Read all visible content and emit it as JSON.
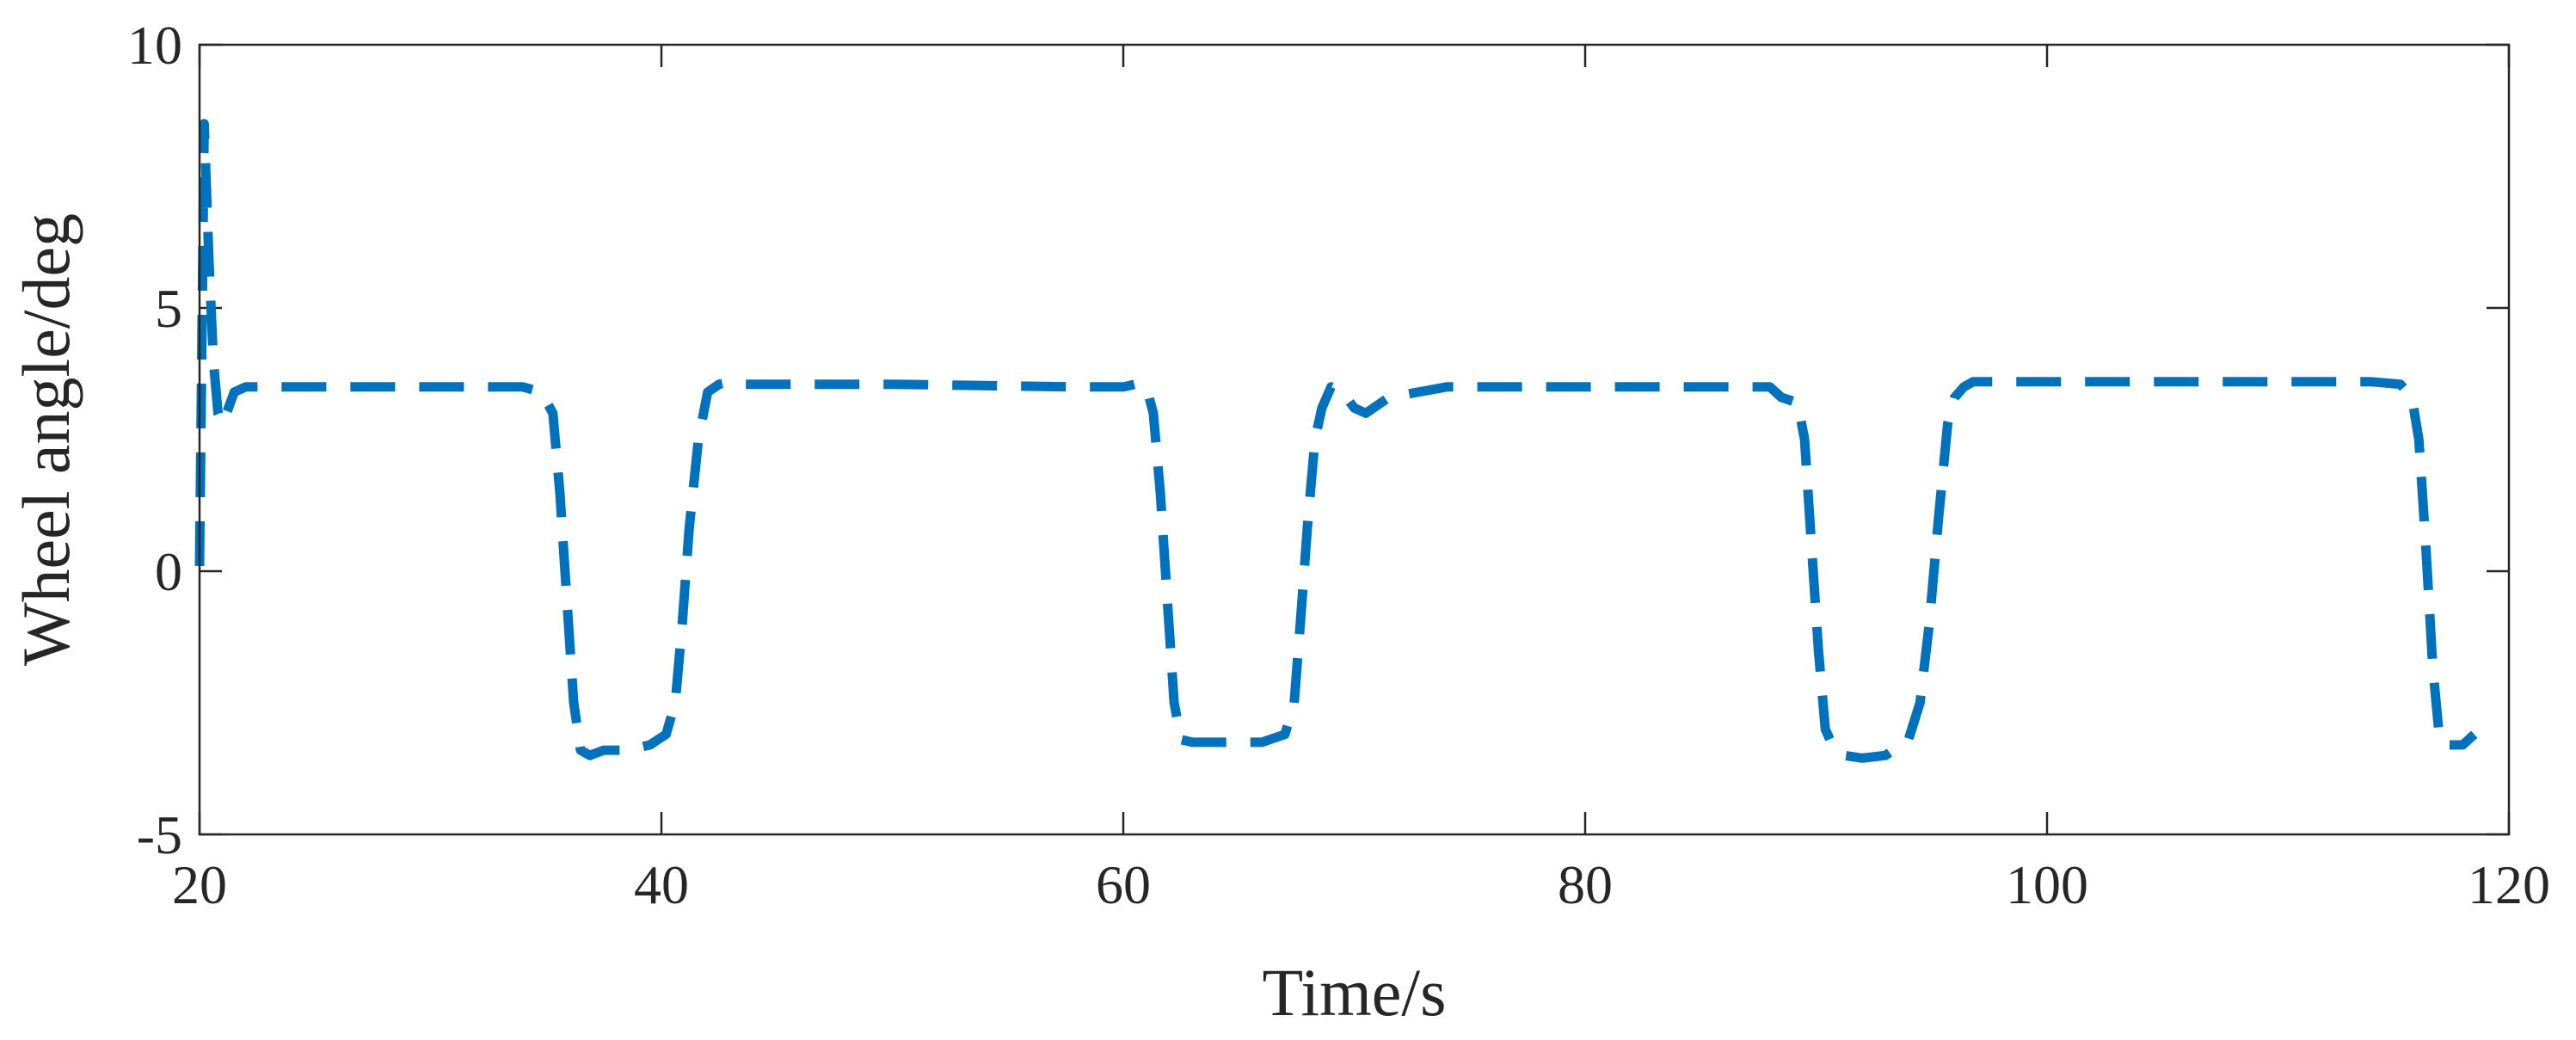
{
  "chart_data": {
    "type": "line",
    "title": "",
    "xlabel": "Time/s",
    "ylabel": "Wheel angle/deg",
    "xlim": [
      20,
      120
    ],
    "ylim": [
      -5,
      10
    ],
    "xticks": [
      20,
      40,
      60,
      80,
      100,
      120
    ],
    "yticks": [
      -5,
      0,
      5,
      10
    ],
    "xtick_labels": [
      "20",
      "40",
      "60",
      "80",
      "100",
      "120"
    ],
    "ytick_labels": [
      "-5",
      "0",
      "5",
      "10"
    ],
    "grid": false,
    "legend": "none",
    "series": [
      {
        "color": "#0072BD",
        "line_style": "dashed",
        "x": [
          20.0,
          20.2,
          20.4,
          20.6,
          20.8,
          21.0,
          21.5,
          22.0,
          24.0,
          30.0,
          34.0,
          34.8,
          35.3,
          35.6,
          35.9,
          36.2,
          36.5,
          36.9,
          37.5,
          38.5,
          39.5,
          40.2,
          40.6,
          40.9,
          41.2,
          41.6,
          42.0,
          42.5,
          43.0,
          43.5,
          44.5,
          50.0,
          58.0,
          60.0,
          60.5,
          61.0,
          61.3,
          61.6,
          61.9,
          62.2,
          62.5,
          63.0,
          64.0,
          65.0,
          66.0,
          67.0,
          67.4,
          67.7,
          68.0,
          68.3,
          68.6,
          69.0,
          69.5,
          70.0,
          70.5,
          71.5,
          74.0,
          80.0,
          86.0,
          88.0,
          88.5,
          89.2,
          89.5,
          89.8,
          90.1,
          90.4,
          90.7,
          91.2,
          92.0,
          93.0,
          94.0,
          94.5,
          94.9,
          95.3,
          95.7,
          96.0,
          96.4,
          96.8,
          97.3,
          98.0,
          100.0,
          108.0,
          114.0,
          115.3,
          115.8,
          116.1,
          116.4,
          116.7,
          117.0,
          117.3,
          117.6,
          118.0,
          118.5
        ],
        "y": [
          0.1,
          8.5,
          6.0,
          4.0,
          3.0,
          2.8,
          3.4,
          3.5,
          3.5,
          3.5,
          3.5,
          3.4,
          3.0,
          1.5,
          -0.5,
          -2.5,
          -3.4,
          -3.5,
          -3.4,
          -3.4,
          -3.3,
          -3.1,
          -2.5,
          -1.0,
          0.8,
          2.5,
          3.4,
          3.55,
          3.6,
          3.55,
          3.55,
          3.55,
          3.5,
          3.5,
          3.55,
          3.5,
          3.0,
          1.5,
          -0.5,
          -2.5,
          -3.2,
          -3.25,
          -3.25,
          -3.25,
          -3.25,
          -3.1,
          -2.5,
          -0.8,
          1.0,
          2.5,
          3.1,
          3.5,
          3.4,
          3.1,
          3.0,
          3.3,
          3.5,
          3.5,
          3.5,
          3.5,
          3.3,
          3.2,
          2.5,
          0.5,
          -1.5,
          -3.0,
          -3.3,
          -3.5,
          -3.55,
          -3.5,
          -3.2,
          -2.5,
          -1.0,
          1.0,
          2.8,
          3.3,
          3.5,
          3.6,
          3.6,
          3.6,
          3.6,
          3.6,
          3.6,
          3.55,
          3.3,
          2.5,
          0.5,
          -1.8,
          -3.2,
          -3.3,
          -3.3,
          -3.3,
          -3.1
        ]
      }
    ]
  }
}
